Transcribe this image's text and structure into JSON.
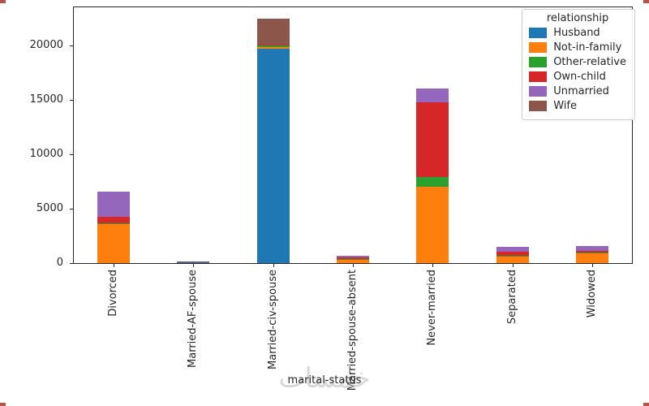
{
  "watermark": "خمسات",
  "chart_data": {
    "type": "bar",
    "stacked": true,
    "title": "",
    "xlabel": "marital-status",
    "ylabel": "",
    "ylim": [
      0,
      23500
    ],
    "yticks": [
      0,
      5000,
      10000,
      15000,
      20000
    ],
    "grid": false,
    "legend_title": "relationship",
    "legend_position": "upper right",
    "categories": [
      "Divorced",
      "Married-AF-spouse",
      "Married-civ-spouse",
      "Married-spouse-absent",
      "Never-married",
      "Separated",
      "Widowed"
    ],
    "series": [
      {
        "name": "Husband",
        "color": "#1f77b4",
        "values": [
          0,
          15,
          19700,
          0,
          0,
          0,
          0
        ]
      },
      {
        "name": "Not-in-family",
        "color": "#ff7f0e",
        "values": [
          3600,
          4,
          150,
          300,
          7000,
          600,
          900
        ]
      },
      {
        "name": "Other-relative",
        "color": "#2ca02c",
        "values": [
          100,
          2,
          130,
          60,
          900,
          60,
          60
        ]
      },
      {
        "name": "Own-child",
        "color": "#d62728",
        "values": [
          600,
          2,
          80,
          120,
          6900,
          350,
          120
        ]
      },
      {
        "name": "Unmarried",
        "color": "#9467bd",
        "values": [
          2300,
          2,
          0,
          170,
          1300,
          450,
          420
        ]
      },
      {
        "name": "Wife",
        "color": "#8c564b",
        "values": [
          0,
          12,
          2350,
          0,
          0,
          0,
          0
        ]
      }
    ]
  }
}
